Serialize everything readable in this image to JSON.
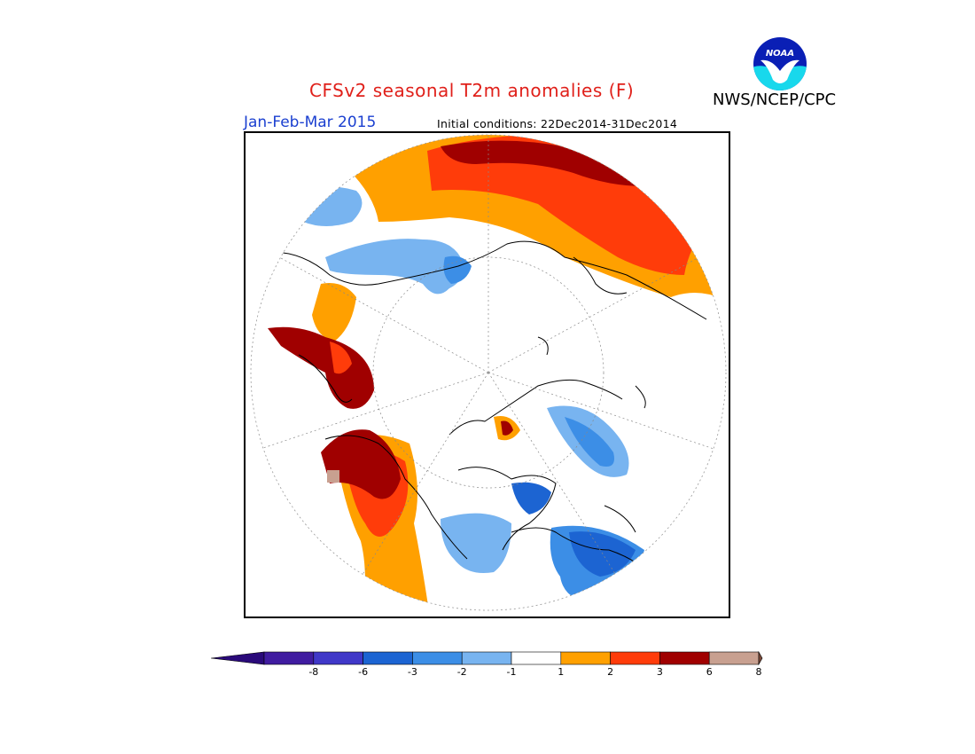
{
  "title": "CFSv2 seasonal T2m anomalies (F)",
  "organization": "NWS/NCEP/CPC",
  "logo_text": "NOAA",
  "period": "Jan-Feb-Mar 2015",
  "initial_conditions": "Initial conditions: 22Dec2014-31Dec2014",
  "colors": {
    "title": "#e0201a",
    "period": "#1a3fd0"
  },
  "colorbar": {
    "labels": [
      "-8",
      "-6",
      "-3",
      "-2",
      "-1",
      "1",
      "2",
      "3",
      "6",
      "8"
    ],
    "colors": [
      "#401ca0",
      "#4038c8",
      "#1c64d2",
      "#3c8ee6",
      "#78b4f0",
      "#ffffff",
      "#ffa000",
      "#ff3c0a",
      "#a00000",
      "#c8a090"
    ],
    "low_arrow_color": "#2a0a7a",
    "high_arrow_color": "#7a4a3a"
  }
}
